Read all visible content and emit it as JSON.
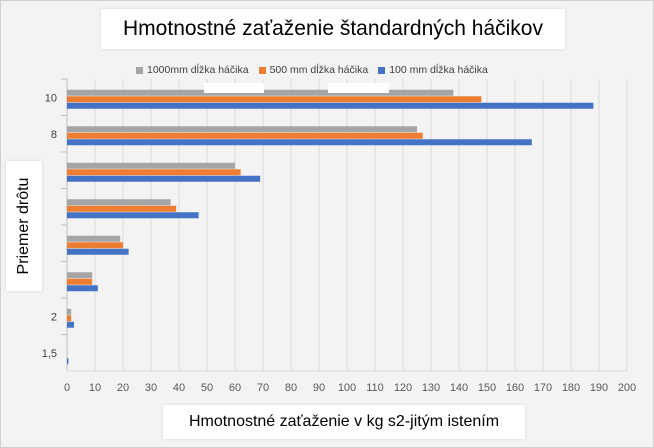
{
  "chart_data": {
    "type": "bar",
    "orientation": "horizontal",
    "title": "Hmotnostné zaťaženie štandardných háčikov",
    "xlabel": "Hmotnostné zaťaženie v kg s2-jitým istením",
    "ylabel": "Priemer drôtu",
    "categories": [
      "1,5",
      "2",
      "",
      "",
      "",
      "",
      "8",
      "10"
    ],
    "series": [
      {
        "name": "1000mm dĺžka háčika",
        "color": "#a5a5a5",
        "values": [
          0,
          1.5,
          9,
          19,
          37,
          60,
          125,
          138
        ]
      },
      {
        "name": "500 mm dĺžka háčika",
        "color": "#ed7d31",
        "values": [
          0,
          1.5,
          9,
          20,
          39,
          62,
          127,
          148
        ]
      },
      {
        "name": "100 mm dĺžka háčika",
        "color": "#4472c4",
        "values": [
          0.5,
          2.5,
          11,
          22,
          47,
          69,
          166,
          188
        ]
      }
    ],
    "xlim": [
      0,
      200
    ],
    "xticks": [
      "0",
      "10",
      "20",
      "30",
      "40",
      "50",
      "60",
      "70",
      "80",
      "90",
      "100",
      "110",
      "120",
      "130",
      "140",
      "150",
      "160",
      "170",
      "180",
      "190",
      "200"
    ],
    "grid": true,
    "legend": "top"
  }
}
